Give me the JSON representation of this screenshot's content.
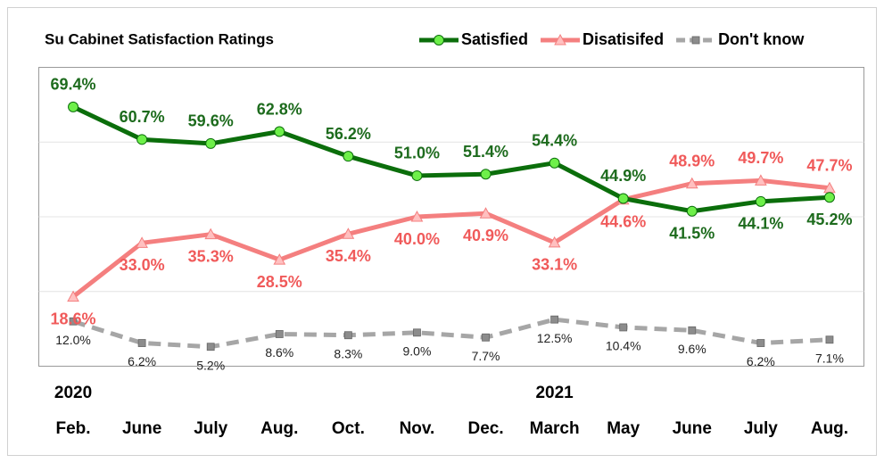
{
  "chart_data": {
    "type": "line",
    "title": "Su Cabinet Satisfaction Ratings",
    "categories": [
      "Feb.",
      "June",
      "July",
      "Aug.",
      "Oct.",
      "Nov.",
      "Dec.",
      "March",
      "May",
      "June",
      "July",
      "Aug."
    ],
    "years": [
      "2020",
      null,
      null,
      null,
      null,
      null,
      null,
      "2021",
      null,
      null,
      null,
      null
    ],
    "ylim": [
      0,
      80
    ],
    "yticks": [
      20,
      40,
      60
    ],
    "grid": true,
    "series": [
      {
        "name": "Satisfied",
        "color": "#0b6e0b",
        "marker_color": "#6ef04a",
        "label_color": "#1d6b1d",
        "marker": "circle",
        "dash": false,
        "values": [
          69.4,
          60.7,
          59.6,
          62.8,
          56.2,
          51.0,
          51.4,
          54.4,
          44.9,
          41.5,
          44.1,
          45.2
        ],
        "value_labels": [
          "69.4%",
          "60.7%",
          "59.6%",
          "62.8%",
          "56.2%",
          "51.0%",
          "51.4%",
          "54.4%",
          "44.9%",
          "41.5%",
          "44.1%",
          "45.2%"
        ]
      },
      {
        "name": "Disatisifed",
        "color": "#f47f7f",
        "marker_color": "#ffc0c0",
        "label_color": "#f05a5a",
        "marker": "triangle",
        "dash": false,
        "values": [
          18.6,
          33.0,
          35.3,
          28.5,
          35.4,
          40.0,
          40.9,
          33.1,
          44.6,
          48.9,
          49.7,
          47.7
        ],
        "value_labels": [
          "18.6%",
          "33.0%",
          "35.3%",
          "28.5%",
          "35.4%",
          "40.0%",
          "40.9%",
          "33.1%",
          "44.6%",
          "48.9%",
          "49.7%",
          "47.7%"
        ]
      },
      {
        "name": "Don't know",
        "color": "#a6a6a6",
        "marker_color": "#8c8c8c",
        "label_color": "#222222",
        "marker": "square",
        "dash": true,
        "values": [
          12.0,
          6.2,
          5.2,
          8.6,
          8.3,
          9.0,
          7.7,
          12.5,
          10.4,
          9.6,
          6.2,
          7.1
        ],
        "value_labels": [
          "12.0%",
          "6.2%",
          "5.2%",
          "8.6%",
          "8.3%",
          "9.0%",
          "7.7%",
          "12.5%",
          "10.4%",
          "9.6%",
          "6.2%",
          "7.1%"
        ]
      }
    ]
  }
}
